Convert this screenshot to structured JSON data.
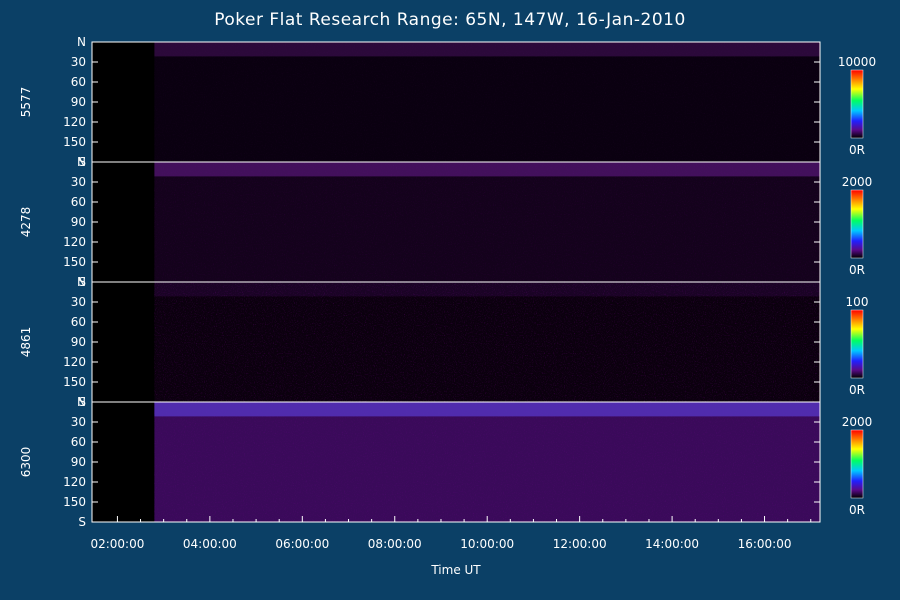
{
  "chart_data": {
    "type": "heatmap",
    "title": "Poker Flat Research Range: 65N, 147W, 16-Jan-2010",
    "xlabel": "Time UT",
    "x_ticks": [
      "02:00:00",
      "04:00:00",
      "06:00:00",
      "08:00:00",
      "10:00:00",
      "12:00:00",
      "14:00:00",
      "16:00:00"
    ],
    "x_tick_hours": [
      2,
      4,
      6,
      8,
      10,
      12,
      14,
      16
    ],
    "xlim": [
      1.45,
      17.2
    ],
    "ylim": [
      0,
      180
    ],
    "y_ticks": [
      "N",
      "30",
      "60",
      "90",
      "120",
      "150",
      "S"
    ],
    "y_tick_values": [
      0,
      30,
      60,
      90,
      120,
      150,
      180
    ],
    "panels": [
      {
        "label": "5577",
        "colorbar_max": "10000",
        "colorbar_min": "0R",
        "data_start_hour": 2.8
      },
      {
        "label": "4278",
        "colorbar_max": "2000",
        "colorbar_min": "0R",
        "data_start_hour": 2.8
      },
      {
        "label": "4861",
        "colorbar_max": "100",
        "colorbar_min": "0R",
        "data_start_hour": 2.8
      },
      {
        "label": "6300",
        "colorbar_max": "2000",
        "colorbar_min": "0R",
        "data_start_hour": 2.8
      }
    ]
  }
}
